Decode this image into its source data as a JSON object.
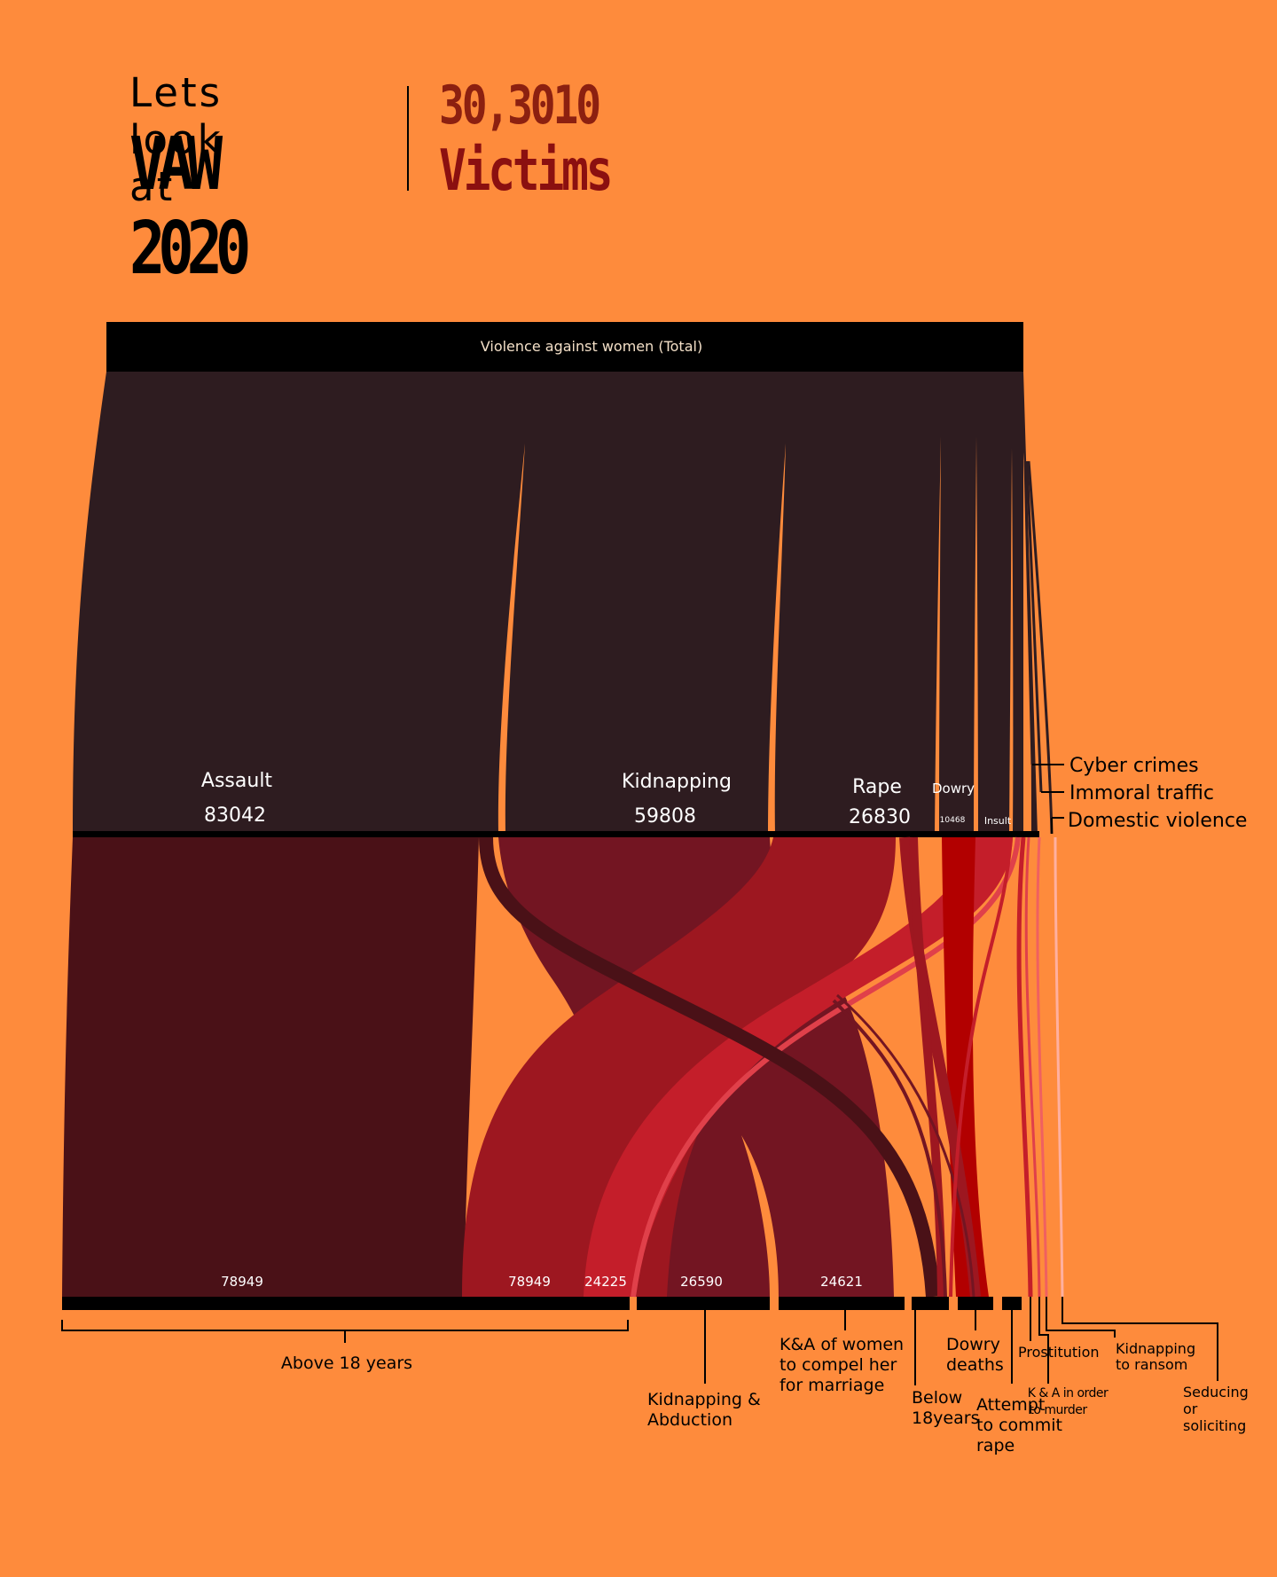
{
  "header": {
    "subtitle": "Lets look at",
    "title": "VAW 2020",
    "victims_count": "30,3010",
    "victims_label": "Victims"
  },
  "total": {
    "label": "Violence against women (Total)"
  },
  "categories": [
    {
      "label": "Assault",
      "value": "83042"
    },
    {
      "label": "Kidnapping",
      "value": "59808"
    },
    {
      "label": "Rape",
      "value": "26830"
    },
    {
      "label": "Dowry",
      "value": "10468"
    },
    {
      "label": "Insult",
      "value": ""
    }
  ],
  "side_labels": [
    "Cyber crimes",
    "Immoral traffic",
    "Domestic violence"
  ],
  "bottom_values": [
    "78949",
    "78949",
    "24225",
    "26590",
    "24621"
  ],
  "outcomes": {
    "above_18": "Above 18 years",
    "kidnapping_abduction": [
      "Kidnapping &",
      "Abduction"
    ],
    "ka_marriage": [
      "K&A of women",
      "to compel her",
      "for marriage"
    ],
    "below_18": [
      "Below",
      "18years"
    ],
    "dowry_deaths": [
      "Dowry",
      "deaths"
    ],
    "attempt_rape": [
      "Attempt",
      "to commit",
      "rape"
    ],
    "prostitution": "Prostitution",
    "ka_murder": [
      "K & A in order",
      "to murder"
    ],
    "kidnap_ransom": [
      "Kidnapping",
      "to ransom"
    ],
    "seducing": [
      "Seducing",
      "or",
      "soliciting"
    ]
  },
  "colors": {
    "background": "#fe8b3c",
    "top_block": "#2e1c20",
    "assault_band": "#4a1117",
    "kidnapping_band": "#731522",
    "rape_band": "#9d1720",
    "crimson": "#c41e2a",
    "dowry_red": "#b20000"
  }
}
